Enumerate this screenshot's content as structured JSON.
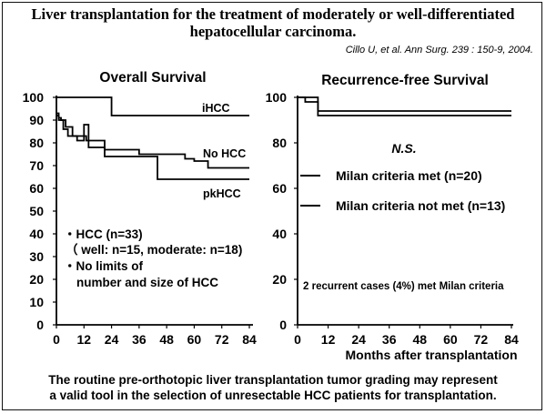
{
  "slide": {
    "title_line1": "Liver transplantation for the treatment of moderately or well-differentiated",
    "title_line2": "hepatocellular carcinoma.",
    "citation": "Cillo U, et al. Ann Surg. 239 : 150-9, 2004.",
    "footer_line1": "The routine pre-orthotopic liver transplantation tumor grading may represent",
    "footer_line2": "a valid tool in the selection of unresectable HCC patients for transplantation."
  },
  "chart_data": [
    {
      "type": "line",
      "step": true,
      "title": "Overall Survival",
      "xlabel": "",
      "ylabel": "",
      "xlim": [
        0,
        84
      ],
      "ylim": [
        0,
        100
      ],
      "xticks": [
        0,
        12,
        24,
        36,
        48,
        60,
        72,
        84
      ],
      "yticks": [
        0,
        10,
        20,
        30,
        40,
        50,
        60,
        70,
        80,
        90,
        100
      ],
      "tick_labels_x": [
        "0",
        "12",
        "24",
        "36",
        "48",
        "60",
        "72",
        "84"
      ],
      "tick_labels_y": [
        "0",
        "10",
        "20",
        "30",
        "40",
        "50",
        "60",
        "70",
        "80",
        "90",
        "100"
      ],
      "series": [
        {
          "name": "iHCC",
          "x": [
            0,
            24,
            24,
            84
          ],
          "y": [
            100,
            100,
            92,
            92
          ]
        },
        {
          "name": "No HCC",
          "x": [
            0,
            1,
            1,
            2,
            2,
            4,
            4,
            7,
            7,
            13,
            13,
            21,
            21,
            36,
            36,
            56,
            56,
            60,
            60,
            66,
            66,
            84
          ],
          "y": [
            92,
            92,
            91,
            91,
            90,
            90,
            87,
            87,
            83,
            83,
            81,
            81,
            77,
            77,
            75,
            75,
            73,
            73,
            72,
            72,
            69,
            69
          ]
        },
        {
          "name": "pkHCC",
          "x": [
            0,
            1,
            1,
            3,
            3,
            5,
            5,
            9,
            9,
            12,
            12,
            14,
            14,
            21,
            21,
            44,
            44,
            84
          ],
          "y": [
            93,
            93,
            90,
            90,
            86,
            86,
            83,
            83,
            81,
            81,
            88,
            88,
            78,
            78,
            74,
            74,
            64,
            64
          ]
        }
      ],
      "series_labels": [
        "iHCC",
        "No HCC",
        "pkHCC"
      ],
      "annotations": [
        "・HCC (n=33)",
        "（ well: n=15, moderate: n=18)",
        "・No limits of",
        "number and size of HCC"
      ]
    },
    {
      "type": "line",
      "step": true,
      "title": "Recurrence-free Survival",
      "xlabel": "Months after transplantation",
      "ylabel": "",
      "xlim": [
        0,
        84
      ],
      "ylim": [
        0,
        100
      ],
      "xticks": [
        0,
        12,
        24,
        36,
        48,
        60,
        72,
        84
      ],
      "yticks": [
        0,
        20,
        40,
        60,
        80,
        100
      ],
      "tick_labels_x": [
        "0",
        "12",
        "24",
        "36",
        "48",
        "60",
        "72",
        "84"
      ],
      "tick_labels_y": [
        "0",
        "20",
        "40",
        "60",
        "80",
        "100"
      ],
      "series": [
        {
          "name": "Milan criteria met (n=20)",
          "x": [
            0,
            3,
            3,
            8,
            8,
            84
          ],
          "y": [
            100,
            100,
            98,
            98,
            94,
            94
          ]
        },
        {
          "name": "Milan criteria not met (n=13)",
          "x": [
            0,
            8,
            8,
            84
          ],
          "y": [
            100,
            100,
            92,
            92
          ]
        }
      ],
      "significance": "N.S.",
      "note": "2 recurrent cases (4%) met Milan criteria"
    }
  ]
}
